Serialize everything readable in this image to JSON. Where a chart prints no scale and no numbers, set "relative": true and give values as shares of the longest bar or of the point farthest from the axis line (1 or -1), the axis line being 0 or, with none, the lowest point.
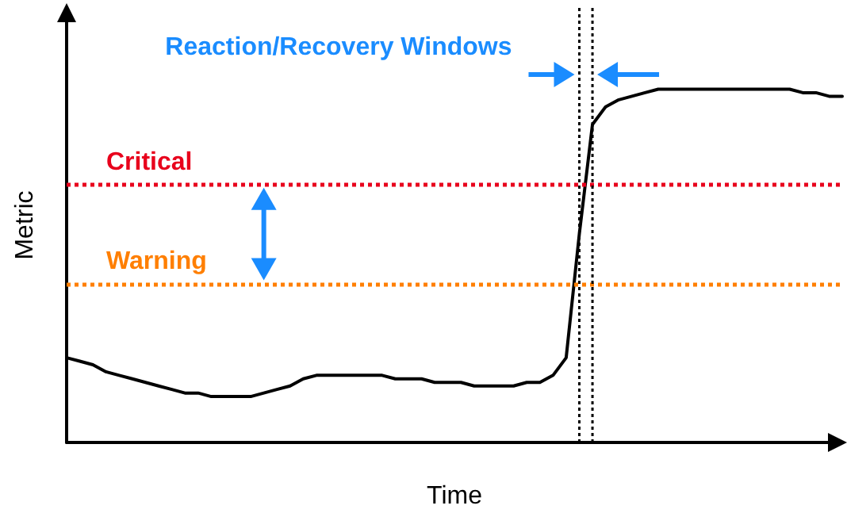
{
  "chart_data": {
    "type": "line",
    "relative": true,
    "xlabel": "Time",
    "ylabel": "Metric",
    "grid": false,
    "marker": "none",
    "line_style": "solid",
    "categories": [
      null,
      null,
      null,
      null,
      null,
      null,
      null,
      null,
      null,
      null,
      null,
      null,
      null,
      null,
      null,
      null,
      null,
      null,
      null,
      null,
      null,
      null,
      null,
      null,
      null,
      null,
      null,
      null,
      null,
      null,
      null,
      null,
      null,
      null,
      null,
      null,
      null,
      null,
      null,
      null,
      null,
      null,
      null,
      null,
      null,
      null,
      null,
      null,
      null,
      null,
      null,
      null,
      null,
      null,
      null,
      null,
      null,
      null,
      null,
      null
    ],
    "series": [
      {
        "color": "#000000",
        "values": [
          0.24,
          0.23,
          0.22,
          0.2,
          0.19,
          0.18,
          0.17,
          0.16,
          0.15,
          0.14,
          0.14,
          0.13,
          0.13,
          0.13,
          0.13,
          0.14,
          0.15,
          0.16,
          0.18,
          0.19,
          0.19,
          0.19,
          0.19,
          0.19,
          0.19,
          0.18,
          0.18,
          0.18,
          0.17,
          0.17,
          0.17,
          0.16,
          0.16,
          0.16,
          0.16,
          0.17,
          0.17,
          0.19,
          0.24,
          0.59,
          0.9,
          0.95,
          0.97,
          0.98,
          0.99,
          1.0,
          1.0,
          1.0,
          1.0,
          1.0,
          1.0,
          1.0,
          1.0,
          1.0,
          1.0,
          1.0,
          0.99,
          0.99,
          0.98,
          0.98
        ]
      }
    ],
    "ref_lines": [
      {
        "axis": "y",
        "value": 0.73,
        "label": "Critical",
        "color": "#e8001c",
        "line_style": "dotted"
      },
      {
        "axis": "y",
        "value": 0.45,
        "label": "Warning",
        "color": "#ff7f00",
        "line_style": "dotted"
      }
    ],
    "annotations": [
      "Reaction/Recovery Windows"
    ]
  }
}
